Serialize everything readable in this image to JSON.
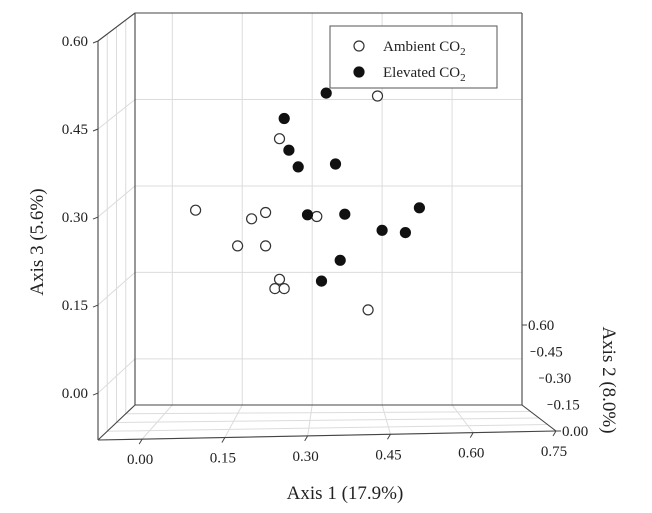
{
  "chart_data": {
    "type": "scatter",
    "projection": "3d",
    "xlabel": "Axis 1 (17.9%)",
    "ylabel": "Axis 2 (8.0%)",
    "zlabel": "Axis 3 (5.6%)",
    "x_ticks": [
      "0.00",
      "0.15",
      "0.30",
      "0.45",
      "0.60",
      "0.75"
    ],
    "y_ticks": [
      "0.00",
      "0.15",
      "0.30",
      "0.45",
      "0.60"
    ],
    "z_ticks": [
      "0.00",
      "0.15",
      "0.30",
      "0.45",
      "0.60"
    ],
    "xlim": [
      -0.08,
      0.75
    ],
    "ylim": [
      0,
      0.6
    ],
    "zlim": [
      -0.08,
      0.6
    ],
    "grid": true,
    "legend_position": "top-right",
    "legend": [
      {
        "name": "Ambient CO",
        "sub": "2",
        "marker": "open-circle"
      },
      {
        "name": "Elevated CO",
        "sub": "2",
        "marker": "filled-circle"
      }
    ],
    "series": [
      {
        "name": "Ambient CO2",
        "marker": "open",
        "points": [
          {
            "x": 0.05,
            "z": 0.258
          },
          {
            "x": 0.17,
            "z": 0.243
          },
          {
            "x": 0.2,
            "z": 0.254
          },
          {
            "x": 0.14,
            "z": 0.196
          },
          {
            "x": 0.2,
            "z": 0.196
          },
          {
            "x": 0.23,
            "z": 0.382
          },
          {
            "x": 0.23,
            "z": 0.138
          },
          {
            "x": 0.22,
            "z": 0.122
          },
          {
            "x": 0.24,
            "z": 0.122
          },
          {
            "x": 0.31,
            "z": 0.247
          },
          {
            "x": 0.44,
            "z": 0.456
          },
          {
            "x": 0.42,
            "z": 0.085
          }
        ]
      },
      {
        "name": "Elevated CO2",
        "marker": "filled",
        "points": [
          {
            "x": 0.24,
            "z": 0.417
          },
          {
            "x": 0.25,
            "z": 0.362
          },
          {
            "x": 0.27,
            "z": 0.333
          },
          {
            "x": 0.33,
            "z": 0.461
          },
          {
            "x": 0.35,
            "z": 0.338
          },
          {
            "x": 0.29,
            "z": 0.25
          },
          {
            "x": 0.37,
            "z": 0.251
          },
          {
            "x": 0.36,
            "z": 0.171
          },
          {
            "x": 0.32,
            "z": 0.135
          },
          {
            "x": 0.45,
            "z": 0.223
          },
          {
            "x": 0.5,
            "z": 0.219
          },
          {
            "x": 0.53,
            "z": 0.262
          }
        ]
      }
    ]
  },
  "colors": {
    "frame": "#444444",
    "grid": "#dcdcdc",
    "marker": "#111111"
  }
}
